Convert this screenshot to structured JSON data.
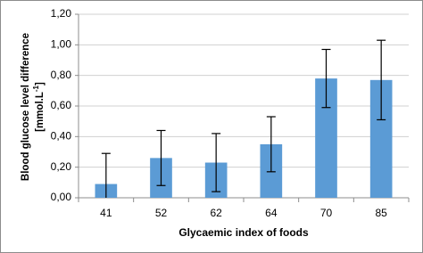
{
  "chart_data": {
    "type": "bar",
    "x_label": "Glycaemic  index of foods",
    "y_label": [
      "Blood glucose  level difference",
      "[mmol.L",
      "-1",
      "]"
    ],
    "categories": [
      "41",
      "52",
      "62",
      "64",
      "70",
      "85"
    ],
    "values": [
      0.09,
      0.26,
      0.23,
      0.35,
      0.78,
      0.77
    ],
    "errors": [
      0.2,
      0.18,
      0.19,
      0.18,
      0.19,
      0.26
    ],
    "color": "#5b9bd5",
    "ylim": [
      0,
      1.2
    ],
    "yticks": [
      {
        "value": 0,
        "label": "0,00"
      },
      {
        "value": 0.2,
        "label": "0,20"
      },
      {
        "value": 0.4,
        "label": "0,40"
      },
      {
        "value": 0.6,
        "label": "0,60"
      },
      {
        "value": 0.8,
        "label": "0,80"
      },
      {
        "value": 1.0,
        "label": "1,00"
      },
      {
        "value": 1.2,
        "label": "1,20"
      }
    ],
    "grid": true
  }
}
